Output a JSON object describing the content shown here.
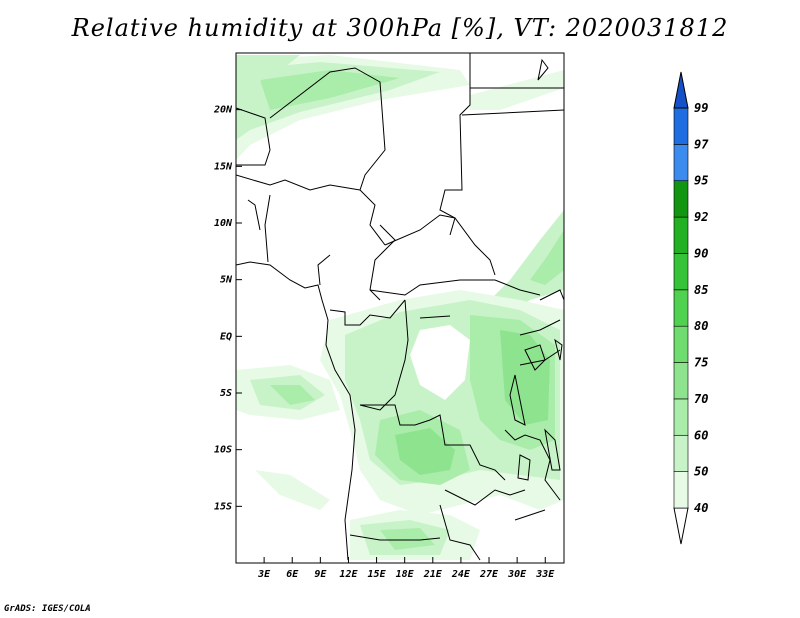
{
  "title": "Relative humidity at 300hPa [%], VT: 2020031812",
  "credit": "GrADS: IGES/COLA",
  "map": {
    "lon_range": [
      0,
      35
    ],
    "lat_range": [
      -20,
      25
    ],
    "lat_ticks": [
      {
        "value": 20,
        "label": "20N"
      },
      {
        "value": 15,
        "label": "15N"
      },
      {
        "value": 10,
        "label": "10N"
      },
      {
        "value": 5,
        "label": "5N"
      },
      {
        "value": 0,
        "label": "EQ"
      },
      {
        "value": -5,
        "label": "5S"
      },
      {
        "value": -10,
        "label": "10S"
      },
      {
        "value": -15,
        "label": "15S"
      }
    ],
    "lon_ticks": [
      {
        "value": 3,
        "label": "3E"
      },
      {
        "value": 6,
        "label": "6E"
      },
      {
        "value": 9,
        "label": "9E"
      },
      {
        "value": 12,
        "label": "12E"
      },
      {
        "value": 15,
        "label": "15E"
      },
      {
        "value": 18,
        "label": "18E"
      },
      {
        "value": 21,
        "label": "21E"
      },
      {
        "value": 24,
        "label": "24E"
      },
      {
        "value": 27,
        "label": "27E"
      },
      {
        "value": 30,
        "label": "30E"
      },
      {
        "value": 33,
        "label": "33E"
      }
    ]
  },
  "colorbar": {
    "levels": [
      "40",
      "50",
      "60",
      "70",
      "75",
      "80",
      "85",
      "90",
      "92",
      "95",
      "97",
      "99"
    ],
    "colors": [
      "#ffffff",
      "#e6fae6",
      "#c8f3c8",
      "#aaecaa",
      "#8ee48e",
      "#6edc6e",
      "#50d250",
      "#37c337",
      "#23b023",
      "#129612",
      "#3c8cf0",
      "#1e6ee1",
      "#1450c8"
    ]
  }
}
